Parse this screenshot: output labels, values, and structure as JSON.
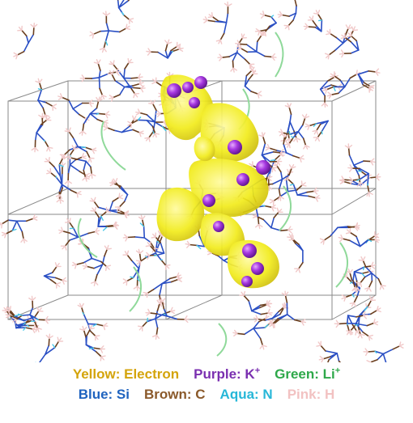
{
  "legend": {
    "row1": [
      {
        "label": "Yellow: Electron",
        "color": "#d4a40b"
      },
      {
        "label": "Purple: K",
        "sup": "+",
        "color": "#7a2fb0"
      },
      {
        "label": "Green: Li",
        "sup": "+",
        "color": "#2ea84a"
      }
    ],
    "row2": [
      {
        "label": "Blue: Si",
        "color": "#1f63bf"
      },
      {
        "label": "Brown: C",
        "color": "#8b5a2b"
      },
      {
        "label": "Aqua: N",
        "color": "#27b7d8"
      },
      {
        "label": "Pink: H",
        "color": "#f2c2c2"
      }
    ]
  },
  "colors": {
    "electron": "#f2ec1c",
    "potassium": "#a638e0",
    "lithium": "#8fd99a",
    "silicon": "#2a4fc4",
    "carbon": "#6b3f1f",
    "nitrogen": "#49c8e8",
    "hydrogen": "#f1c9c9",
    "cell_edge": "#8a8a8a"
  }
}
